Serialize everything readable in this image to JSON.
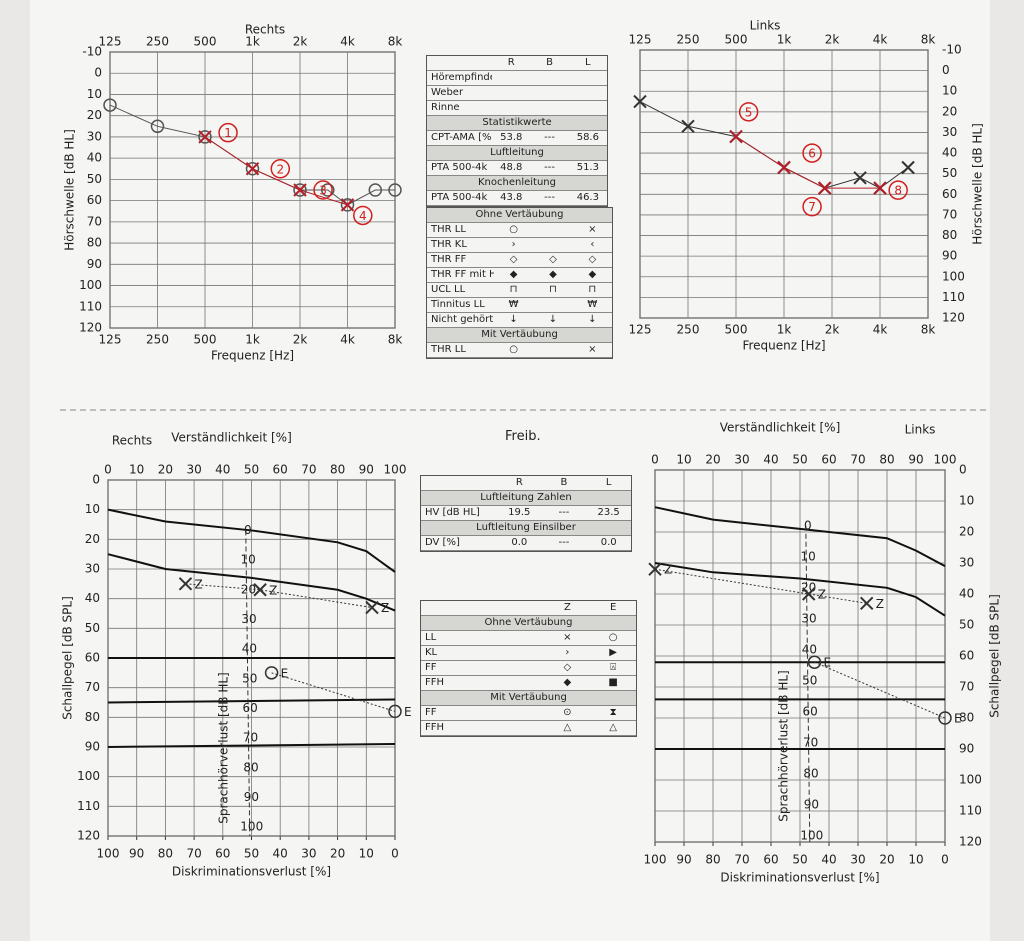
{
  "chart_data": [
    {
      "type": "audiogram",
      "title": "Rechts",
      "x_label": "Frequenz [Hz]",
      "y_label": "Hörschwelle [dB HL]",
      "log_x": true,
      "xlim": [
        125,
        8000
      ],
      "xticks": [
        125,
        250,
        500,
        {
          "value": 1000,
          "label": "1k"
        },
        {
          "value": 2000,
          "label": "2k"
        },
        {
          "value": 4000,
          "label": "4k"
        },
        {
          "value": 8000,
          "label": "8k"
        }
      ],
      "ylim": [
        -10,
        120
      ],
      "y_reversed": true,
      "yticks": [
        -10,
        0,
        10,
        20,
        30,
        40,
        50,
        60,
        70,
        80,
        90,
        100,
        110,
        120
      ],
      "y_axis_side": "left",
      "grid": true,
      "series": [
        {
          "marker": "circle",
          "color": "#555555",
          "x": [
            125,
            250,
            500,
            1000,
            2000,
            3000,
            4000,
            6000,
            8000
          ],
          "values": [
            15,
            25,
            30,
            45,
            55,
            55,
            62,
            55,
            55
          ]
        },
        {
          "marker": "cross",
          "color": "#b3202a",
          "x": [
            500,
            1000,
            2000,
            4000
          ],
          "values": [
            30,
            45,
            55,
            62
          ]
        }
      ],
      "annotations": [
        {
          "text": "1",
          "x": 700,
          "y": 28
        },
        {
          "text": "2",
          "x": 1500,
          "y": 45
        },
        {
          "text": "3",
          "x": 2800,
          "y": 55
        },
        {
          "text": "4",
          "x": 5000,
          "y": 67
        }
      ]
    },
    {
      "type": "audiogram",
      "title": "Links",
      "x_label": "Frequenz [Hz]",
      "y_label": "Hörschwelle [dB HL]",
      "log_x": true,
      "xlim": [
        125,
        8000
      ],
      "xticks": [
        125,
        250,
        500,
        {
          "value": 1000,
          "label": "1k"
        },
        {
          "value": 2000,
          "label": "2k"
        },
        {
          "value": 4000,
          "label": "4k"
        },
        {
          "value": 8000,
          "label": "8k"
        }
      ],
      "ylim": [
        -10,
        120
      ],
      "y_reversed": true,
      "yticks": [
        -10,
        0,
        10,
        20,
        30,
        40,
        50,
        60,
        70,
        80,
        90,
        100,
        110,
        120
      ],
      "y_axis_side": "right",
      "grid": true,
      "series": [
        {
          "marker": "cross",
          "color": "#333333",
          "x": [
            125,
            250,
            500,
            1000,
            1800,
            3000,
            4000,
            6000
          ],
          "values": [
            15,
            27,
            32,
            47,
            57,
            52,
            57,
            47
          ]
        },
        {
          "marker": "cross",
          "color": "#b3202a",
          "x": [
            500,
            1000,
            1800,
            4000
          ],
          "values": [
            32,
            47,
            57,
            57
          ]
        }
      ],
      "annotations": [
        {
          "text": "5",
          "x": 600,
          "y": 20
        },
        {
          "text": "6",
          "x": 1500,
          "y": 40
        },
        {
          "text": "7",
          "x": 1500,
          "y": 66
        },
        {
          "text": "8",
          "x": 5200,
          "y": 58
        }
      ]
    },
    {
      "type": "speech",
      "title": "Rechts",
      "x_label": "Verständlichkeit [%]",
      "x2_label": "Diskriminationsverlust [%]",
      "y_label": "Schallpegel [dB SPL]",
      "xlim": [
        0,
        100
      ],
      "xticks": [
        0,
        10,
        20,
        30,
        40,
        50,
        60,
        70,
        80,
        90,
        100
      ],
      "x2lim": [
        100,
        0
      ],
      "x2ticks": [
        100,
        90,
        80,
        70,
        60,
        50,
        40,
        30,
        20,
        10,
        0
      ],
      "ylim": [
        0,
        120
      ],
      "y_reversed": true,
      "yticks": [
        0,
        10,
        20,
        30,
        40,
        50,
        60,
        70,
        80,
        90,
        100,
        110,
        120
      ],
      "y_axis_side": "left",
      "grid": true,
      "inner_label": "Sprachhörverlust [dB HL]",
      "inner_lim": [
        -17,
        103
      ],
      "inner_ticks": [
        0,
        10,
        20,
        30,
        40,
        50,
        60,
        70,
        80,
        90,
        100
      ],
      "curves": [
        {
          "x": [
            0,
            20,
            50,
            80,
            90,
            100
          ],
          "values": [
            10,
            14,
            17,
            21,
            24,
            31
          ]
        },
        {
          "x": [
            0,
            20,
            50,
            80,
            90,
            100
          ],
          "values": [
            25,
            30,
            33,
            37,
            40,
            44
          ]
        },
        {
          "x": [
            0,
            100
          ],
          "values": [
            60,
            60
          ]
        },
        {
          "x": [
            0,
            100
          ],
          "values": [
            75,
            74
          ]
        },
        {
          "x": [
            0,
            100
          ],
          "values": [
            90,
            89
          ]
        }
      ],
      "series": [
        {
          "name": "Z",
          "marker": "cross",
          "color": "#333333",
          "x": [
            27,
            53,
            92
          ],
          "values": [
            35,
            37,
            43
          ]
        },
        {
          "name": "E",
          "marker": "circle",
          "color": "#333333",
          "x": [
            57,
            100
          ],
          "values": [
            65,
            78
          ]
        }
      ]
    },
    {
      "type": "speech",
      "title": "Links",
      "x_label": "Verständlichkeit [%]",
      "x2_label": "Diskriminationsverlust [%]",
      "y_label": "Schallpegel [dB SPL]",
      "xlim": [
        0,
        100
      ],
      "xticks": [
        0,
        10,
        20,
        30,
        40,
        50,
        60,
        70,
        80,
        90,
        100
      ],
      "x2lim": [
        100,
        0
      ],
      "x2ticks": [
        100,
        90,
        80,
        70,
        60,
        50,
        40,
        30,
        20,
        10,
        0
      ],
      "ylim": [
        0,
        120
      ],
      "y_reversed": true,
      "yticks": [
        0,
        10,
        20,
        30,
        40,
        50,
        60,
        70,
        80,
        90,
        100,
        110,
        120
      ],
      "y_axis_side": "right",
      "grid": true,
      "inner_label": "Sprachhörverlust [dB HL]",
      "inner_lim": [
        -18,
        102
      ],
      "inner_ticks": [
        0,
        10,
        20,
        30,
        40,
        50,
        60,
        70,
        80,
        90,
        100
      ],
      "curves": [
        {
          "x": [
            0,
            20,
            50,
            80,
            90,
            100
          ],
          "values": [
            12,
            16,
            19,
            22,
            26,
            31
          ]
        },
        {
          "x": [
            0,
            20,
            50,
            80,
            90,
            100
          ],
          "values": [
            30,
            33,
            35,
            38,
            41,
            47
          ]
        },
        {
          "x": [
            0,
            100
          ],
          "values": [
            62,
            62
          ]
        },
        {
          "x": [
            0,
            100
          ],
          "values": [
            74,
            74
          ]
        },
        {
          "x": [
            0,
            100
          ],
          "values": [
            90,
            90
          ]
        }
      ],
      "series": [
        {
          "name": "Z",
          "marker": "cross",
          "color": "#333333",
          "x": [
            0,
            53,
            73
          ],
          "values": [
            32,
            40,
            43
          ]
        },
        {
          "name": "E",
          "marker": "circle",
          "color": "#333333",
          "x": [
            55,
            100
          ],
          "values": [
            62,
            80
          ]
        }
      ]
    }
  ],
  "tables": {
    "stats": {
      "columns": [
        "R",
        "B",
        "L"
      ],
      "rows": [
        {
          "label": "Hörempfinden"
        },
        {
          "label": "Weber"
        },
        {
          "label": "Rinne"
        },
        {
          "section": "Statistikwerte"
        },
        {
          "label": "CPT-AMA [%]",
          "cells": [
            "53.8",
            "---",
            "58.6"
          ]
        },
        {
          "section": "Luftleitung"
        },
        {
          "label": "PTA 500-4k",
          "cells": [
            "48.8",
            "---",
            "51.3"
          ]
        },
        {
          "section": "Knochenleitung"
        },
        {
          "label": "PTA 500-4k",
          "cells": [
            "43.8",
            "---",
            "46.3"
          ]
        }
      ]
    },
    "legend": {
      "rows": [
        {
          "section": "Ohne Vertäubung"
        },
        {
          "label": "THR LL",
          "cells": [
            "○",
            null,
            "×"
          ]
        },
        {
          "label": "THR KL",
          "cells": [
            "›",
            null,
            "‹"
          ]
        },
        {
          "label": "THR FF",
          "cells": [
            "◇",
            "◇",
            "◇"
          ]
        },
        {
          "label": "THR FF mit HG",
          "cells": [
            "◆",
            "◆",
            "◆"
          ]
        },
        {
          "label": "UCL LL",
          "cells": [
            "⊓",
            "⊓",
            "⊓"
          ]
        },
        {
          "label": "Tinnitus LL",
          "cells": [
            "₩",
            null,
            "₩"
          ]
        },
        {
          "label": "Nicht gehört",
          "cells": [
            "↓",
            "↓",
            "↓"
          ]
        },
        {
          "section": "Mit Vertäubung"
        },
        {
          "label": "THR LL",
          "cells": [
            "○",
            null,
            "×"
          ]
        }
      ]
    },
    "speech_title": "Freib.",
    "speech_stats": {
      "columns": [
        "R",
        "B",
        "L"
      ],
      "rows": [
        {
          "section": "Luftleitung Zahlen"
        },
        {
          "label": "HV [dB HL]",
          "cells": [
            "19.5",
            "---",
            "23.5"
          ]
        },
        {
          "section": "Luftleitung Einsilber"
        },
        {
          "label": "DV [%]",
          "cells": [
            "0.0",
            "---",
            "0.0"
          ]
        }
      ]
    },
    "speech_legend": {
      "columns": [
        null,
        "Z",
        "E"
      ],
      "rows": [
        {
          "section": "Ohne Vertäubung"
        },
        {
          "label": "LL",
          "cells": [
            null,
            "×",
            "○"
          ]
        },
        {
          "label": "KL",
          "cells": [
            null,
            "›",
            "▶"
          ]
        },
        {
          "label": "FF",
          "cells": [
            null,
            "◇",
            "⍓"
          ]
        },
        {
          "label": "FFH",
          "cells": [
            null,
            "◆",
            "■"
          ]
        },
        {
          "section": "Mit Vertäubung"
        },
        {
          "label": "FF",
          "cells": [
            null,
            "⊙",
            "⧗"
          ]
        },
        {
          "label": "FFH",
          "cells": [
            null,
            "△",
            "△"
          ]
        }
      ]
    }
  }
}
